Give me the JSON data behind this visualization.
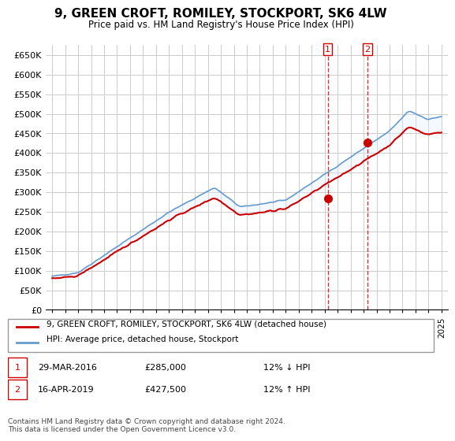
{
  "title": "9, GREEN CROFT, ROMILEY, STOCKPORT, SK6 4LW",
  "subtitle": "Price paid vs. HM Land Registry's House Price Index (HPI)",
  "ylabel_ticks": [
    "£0",
    "£50K",
    "£100K",
    "£150K",
    "£200K",
    "£250K",
    "£300K",
    "£350K",
    "£400K",
    "£450K",
    "£500K",
    "£550K",
    "£600K",
    "£650K"
  ],
  "ytick_values": [
    0,
    50000,
    100000,
    150000,
    200000,
    250000,
    300000,
    350000,
    400000,
    450000,
    500000,
    550000,
    600000,
    650000
  ],
  "sale1_date": "29-MAR-2016",
  "sale1_price": 285000,
  "sale1_hpi": "12% ↓ HPI",
  "sale2_date": "16-APR-2019",
  "sale2_price": 427500,
  "sale2_hpi": "12% ↑ HPI",
  "sale1_x": 2016.24,
  "sale2_x": 2019.29,
  "legend_line1": "9, GREEN CROFT, ROMILEY, STOCKPORT, SK6 4LW (detached house)",
  "legend_line2": "HPI: Average price, detached house, Stockport",
  "footer": "Contains HM Land Registry data © Crown copyright and database right 2024.\nThis data is licensed under the Open Government Licence v3.0.",
  "red_color": "#cc0000",
  "blue_color": "#6699cc",
  "shade_color": "#ddeeff",
  "vline_color": "#cc0000",
  "grid_color": "#cccccc",
  "background_color": "#ffffff"
}
